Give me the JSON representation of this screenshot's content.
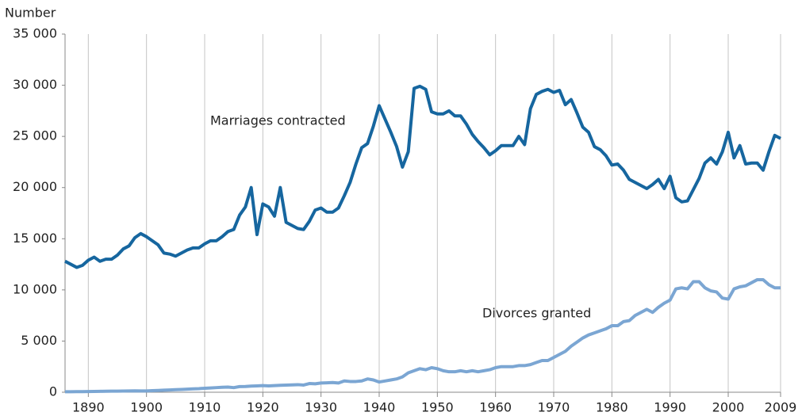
{
  "chart_data": {
    "type": "line",
    "y_label": "Number",
    "x": [
      1886,
      1887,
      1888,
      1889,
      1890,
      1891,
      1892,
      1893,
      1894,
      1895,
      1896,
      1897,
      1898,
      1899,
      1900,
      1901,
      1902,
      1903,
      1904,
      1905,
      1906,
      1907,
      1908,
      1909,
      1910,
      1911,
      1912,
      1913,
      1914,
      1915,
      1916,
      1917,
      1918,
      1919,
      1920,
      1921,
      1922,
      1923,
      1924,
      1925,
      1926,
      1927,
      1928,
      1929,
      1930,
      1931,
      1932,
      1933,
      1934,
      1935,
      1936,
      1937,
      1938,
      1939,
      1940,
      1941,
      1942,
      1943,
      1944,
      1945,
      1946,
      1947,
      1948,
      1949,
      1950,
      1951,
      1952,
      1953,
      1954,
      1955,
      1956,
      1957,
      1958,
      1959,
      1960,
      1961,
      1962,
      1963,
      1964,
      1965,
      1966,
      1967,
      1968,
      1969,
      1970,
      1971,
      1972,
      1973,
      1974,
      1975,
      1976,
      1977,
      1978,
      1979,
      1980,
      1981,
      1982,
      1983,
      1984,
      1985,
      1986,
      1987,
      1988,
      1989,
      1990,
      1991,
      1992,
      1993,
      1994,
      1995,
      1996,
      1997,
      1998,
      1999,
      2000,
      2001,
      2002,
      2003,
      2004,
      2005,
      2006,
      2007,
      2008,
      2009
    ],
    "series": [
      {
        "name": "Marriages contracted",
        "color": "#16669f",
        "values": [
          12800,
          12500,
          12200,
          12400,
          12900,
          13200,
          12800,
          13000,
          13000,
          13400,
          14000,
          14300,
          15100,
          15500,
          15200,
          14800,
          14400,
          13600,
          13500,
          13300,
          13600,
          13900,
          14100,
          14100,
          14500,
          14800,
          14800,
          15200,
          15700,
          15900,
          17300,
          18100,
          20000,
          15400,
          18400,
          18100,
          17200,
          20000,
          16600,
          16300,
          16000,
          15900,
          16700,
          17800,
          18000,
          17600,
          17600,
          18000,
          19200,
          20500,
          22300,
          23900,
          24300,
          26000,
          28000,
          26700,
          25400,
          24000,
          22000,
          23500,
          29700,
          29900,
          29600,
          27400,
          27200,
          27200,
          27500,
          27000,
          27000,
          26200,
          25200,
          24500,
          23900,
          23200,
          23600,
          24100,
          24100,
          24100,
          25000,
          24200,
          27700,
          29100,
          29400,
          29600,
          29300,
          29500,
          28100,
          28600,
          27300,
          25900,
          25400,
          24000,
          23700,
          23100,
          22200,
          22300,
          21700,
          20800,
          20500,
          20200,
          19900,
          20300,
          20800,
          19900,
          21100,
          19000,
          18600,
          18700,
          19800,
          20900,
          22400,
          22900,
          22300,
          23500,
          25400,
          22900,
          24100,
          22300,
          22400,
          22400,
          21700,
          23500,
          25100,
          24800
        ]
      },
      {
        "name": "Divorces granted",
        "color": "#7ba6d3",
        "values": [
          50,
          50,
          60,
          60,
          70,
          80,
          90,
          100,
          110,
          110,
          120,
          130,
          140,
          130,
          130,
          150,
          170,
          200,
          220,
          250,
          270,
          300,
          330,
          350,
          390,
          420,
          450,
          480,
          500,
          450,
          550,
          560,
          600,
          620,
          650,
          620,
          650,
          680,
          700,
          720,
          740,
          700,
          850,
          820,
          900,
          920,
          950,
          900,
          1100,
          1050,
          1050,
          1100,
          1300,
          1200,
          1000,
          1100,
          1200,
          1300,
          1500,
          1900,
          2100,
          2300,
          2200,
          2400,
          2300,
          2100,
          2000,
          2000,
          2100,
          2000,
          2100,
          2000,
          2100,
          2200,
          2400,
          2500,
          2500,
          2500,
          2600,
          2600,
          2700,
          2900,
          3100,
          3100,
          3400,
          3700,
          4000,
          4500,
          4900,
          5300,
          5600,
          5800,
          6000,
          6200,
          6500,
          6500,
          6900,
          7000,
          7500,
          7800,
          8100,
          7800,
          8300,
          8700,
          9000,
          10100,
          10200,
          10100,
          10800,
          10800,
          10200,
          9900,
          9800,
          9200,
          9100,
          10100,
          10300,
          10400,
          10700,
          11000,
          11000,
          10500,
          10200,
          10200
        ]
      }
    ],
    "xlim": [
      1886,
      2009
    ],
    "xticks": [
      1890,
      1900,
      1910,
      1920,
      1930,
      1940,
      1950,
      1960,
      1970,
      1980,
      1990,
      2000,
      2009
    ],
    "ylim": [
      0,
      35000
    ],
    "yticks": [
      0,
      {
        "value": 5000,
        "label": "5 000"
      },
      {
        "value": 10000,
        "label": "10 000"
      },
      {
        "value": 15000,
        "label": "15 000"
      },
      {
        "value": 20000,
        "label": "20 000"
      },
      {
        "value": 25000,
        "label": "25 000"
      },
      {
        "value": 30000,
        "label": "30 000"
      },
      {
        "value": 35000,
        "label": "35 000"
      }
    ],
    "grid": true
  }
}
